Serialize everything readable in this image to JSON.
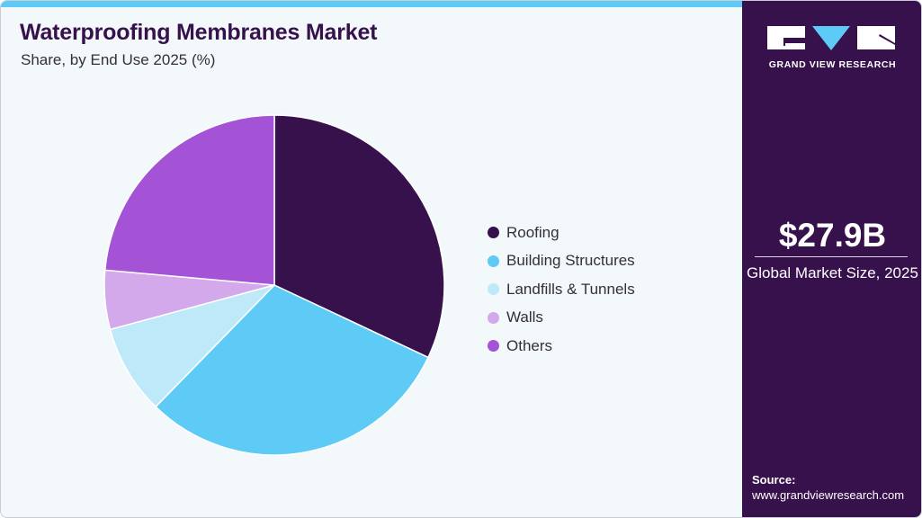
{
  "header": {
    "title": "Waterproofing Membranes Market",
    "subtitle": "Share, by End Use 2025 (%)"
  },
  "legend": {
    "items": [
      {
        "label": "Roofing",
        "color": "#37114b"
      },
      {
        "label": "Building Structures",
        "color": "#5ecbf6"
      },
      {
        "label": "Landfills & Tunnels",
        "color": "#bde9f9"
      },
      {
        "label": "Walls",
        "color": "#d4a9ec"
      },
      {
        "label": "Others",
        "color": "#a452d6"
      }
    ]
  },
  "sidebar": {
    "brand": "GRAND VIEW RESEARCH",
    "market_value": "$27.9B",
    "market_label": "Global Market Size, 2025",
    "source_label": "Source:",
    "source_url": "www.grandviewresearch.com"
  },
  "colors": {
    "primary": "#37114b",
    "accent": "#5ecbf6",
    "background": "#f3f8fb"
  },
  "chart_data": {
    "type": "pie",
    "title": "Waterproofing Membranes Market",
    "subtitle": "Share, by End Use 2025 (%)",
    "categories": [
      "Roofing",
      "Building Structures",
      "Landfills & Tunnels",
      "Walls",
      "Others"
    ],
    "values": [
      32.0,
      30.3,
      8.5,
      5.6,
      23.6
    ],
    "colors": [
      "#37114b",
      "#5ecbf6",
      "#bde9f9",
      "#d4a9ec",
      "#a452d6"
    ],
    "start_angle_deg": 0,
    "direction": "clockwise",
    "legend_position": "right",
    "data_labels": false
  }
}
